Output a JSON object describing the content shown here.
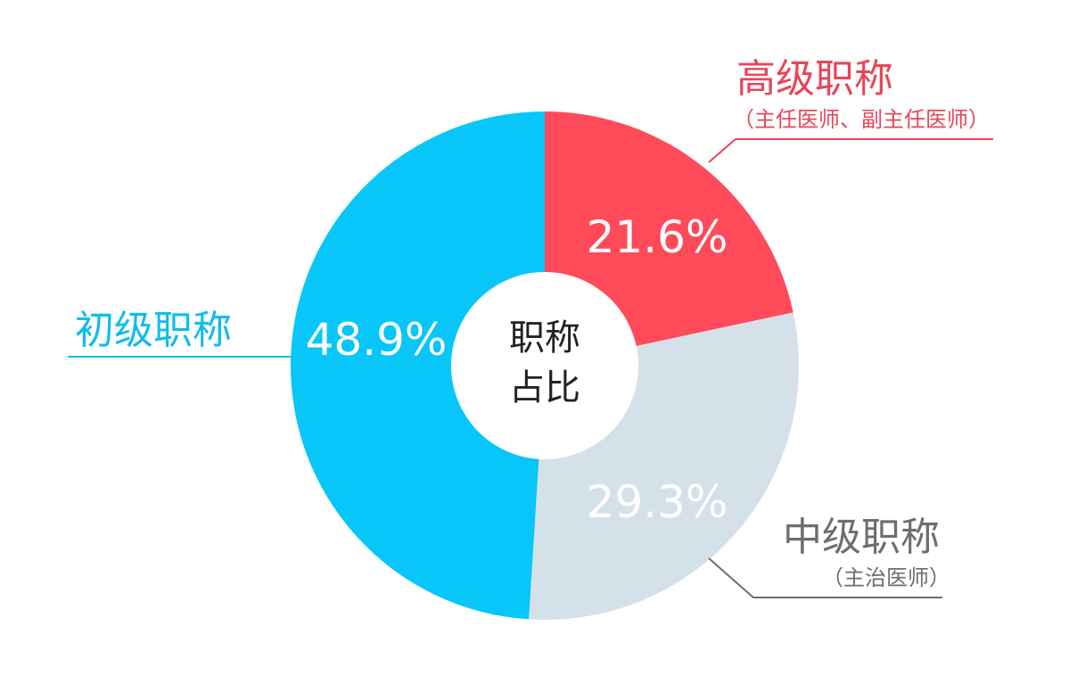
{
  "chart_data": {
    "type": "pie",
    "title": "",
    "center_label": [
      "职称",
      "占比"
    ],
    "slices": [
      {
        "label": "高级职称",
        "sublabel": "（主任医师、副主任医师）",
        "value": 21.6,
        "display": "21.6%",
        "color": "#FF4A5A"
      },
      {
        "label": "中级职称",
        "sublabel": "（主治医师）",
        "value": 29.3,
        "display": "29.3%",
        "color": "#D5E1E9"
      },
      {
        "label": "初级职称",
        "sublabel": "",
        "value": 48.9,
        "display": "48.9%",
        "color": "#08C6F8"
      }
    ],
    "label_colors": [
      "#E8455A",
      "#6E6E6E",
      "#10BDEB"
    ],
    "legend": "callouts"
  }
}
